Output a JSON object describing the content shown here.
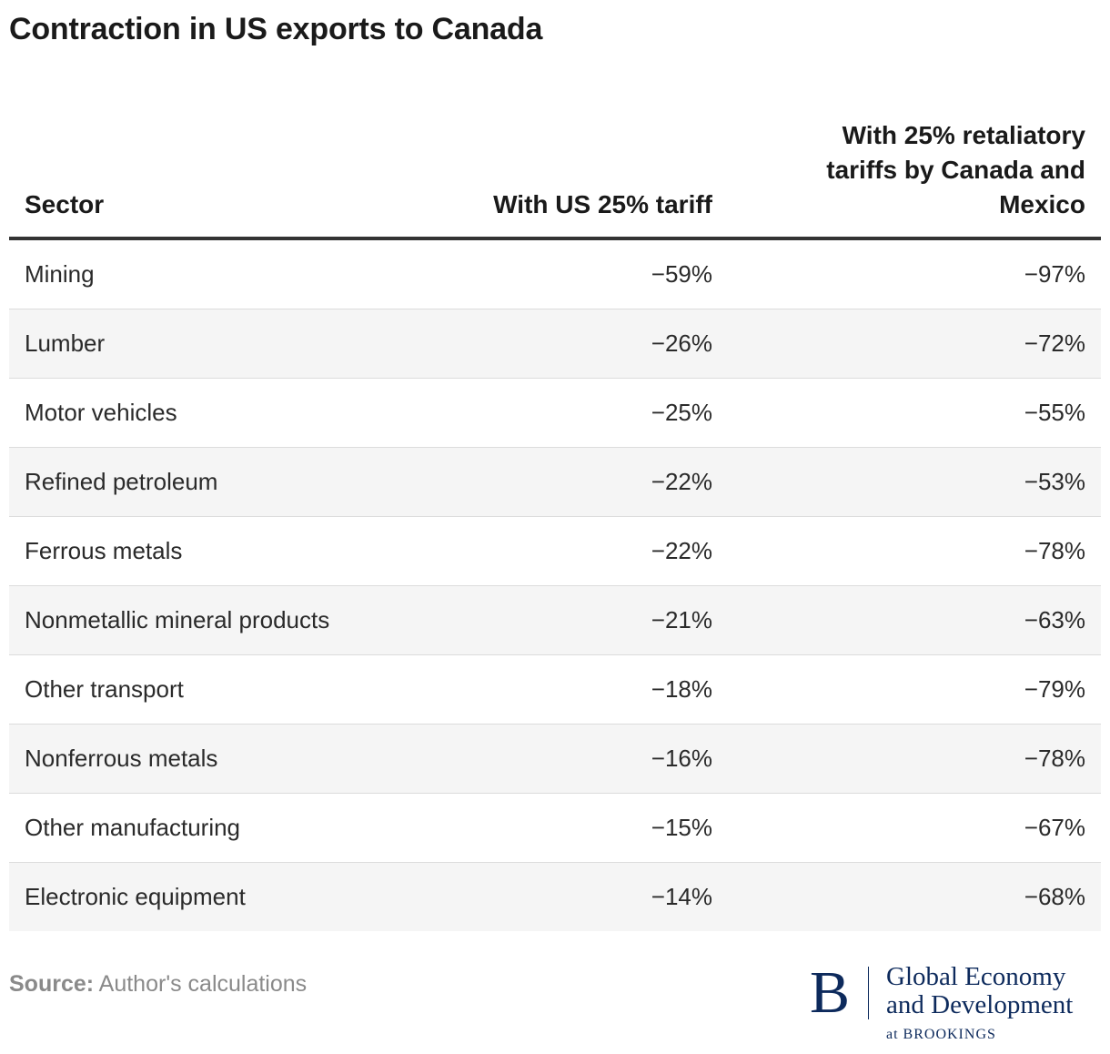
{
  "title": "Contraction in US exports to Canada",
  "chart_data": {
    "type": "table",
    "title": "Contraction in US exports to Canada",
    "columns": [
      "Sector",
      "With US 25% tariff",
      "With 25% retaliatory tariffs by Canada and Mexico"
    ],
    "rows": [
      {
        "sector": "Mining",
        "us_tariff": -59,
        "retaliatory": -97,
        "us_tariff_label": "−59%",
        "retaliatory_label": "−97%"
      },
      {
        "sector": "Lumber",
        "us_tariff": -26,
        "retaliatory": -72,
        "us_tariff_label": "−26%",
        "retaliatory_label": "−72%"
      },
      {
        "sector": "Motor vehicles",
        "us_tariff": -25,
        "retaliatory": -55,
        "us_tariff_label": "−25%",
        "retaliatory_label": "−55%"
      },
      {
        "sector": "Refined petroleum",
        "us_tariff": -22,
        "retaliatory": -53,
        "us_tariff_label": "−22%",
        "retaliatory_label": "−53%"
      },
      {
        "sector": "Ferrous metals",
        "us_tariff": -22,
        "retaliatory": -78,
        "us_tariff_label": "−22%",
        "retaliatory_label": "−78%"
      },
      {
        "sector": "Nonmetallic mineral products",
        "us_tariff": -21,
        "retaliatory": -63,
        "us_tariff_label": "−21%",
        "retaliatory_label": "−63%"
      },
      {
        "sector": "Other transport",
        "us_tariff": -18,
        "retaliatory": -79,
        "us_tariff_label": "−18%",
        "retaliatory_label": "−79%"
      },
      {
        "sector": "Nonferrous metals",
        "us_tariff": -16,
        "retaliatory": -78,
        "us_tariff_label": "−16%",
        "retaliatory_label": "−78%"
      },
      {
        "sector": "Other manufacturing",
        "us_tariff": -15,
        "retaliatory": -67,
        "us_tariff_label": "−15%",
        "retaliatory_label": "−67%"
      },
      {
        "sector": "Electronic equipment",
        "us_tariff": -14,
        "retaliatory": -68,
        "us_tariff_label": "−14%",
        "retaliatory_label": "−68%"
      }
    ],
    "units": "%",
    "striped_rows": true
  },
  "footer": {
    "source_label": "Source:",
    "source_text": " Author's calculations"
  },
  "logo": {
    "mark": "B",
    "line1": "Global Economy",
    "line2": "and Development",
    "sub": "at BROOKINGS"
  },
  "colors": {
    "brand": "#0d2a5c",
    "row_stripe": "#f5f5f5",
    "header_rule": "#333333"
  }
}
